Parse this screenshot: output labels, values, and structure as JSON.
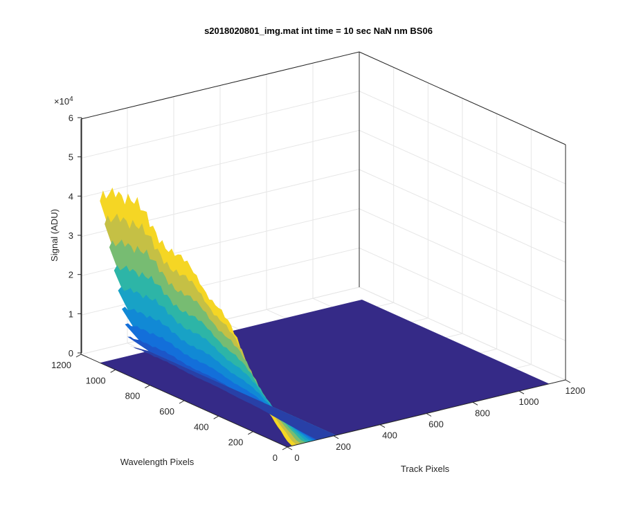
{
  "chart_data": {
    "type": "surface",
    "title": "s2018020801_img.mat int time = 10 sec  NaN nm BS06",
    "xlabel": "Track Pixels",
    "ylabel": "Wavelength Pixels",
    "zlabel": "Signal (ADU)",
    "z_exponent_label": "×10",
    "z_exponent": "4",
    "xlim": [
      0,
      1200
    ],
    "ylim": [
      0,
      1200
    ],
    "zlim": [
      0,
      60000
    ],
    "x_ticks": [
      "0",
      "200",
      "400",
      "600",
      "800",
      "1000",
      "1200"
    ],
    "y_ticks": [
      "0",
      "200",
      "400",
      "600",
      "800",
      "1000",
      "1200"
    ],
    "z_ticks": [
      "0",
      "1",
      "2",
      "3",
      "4",
      "5",
      "6"
    ],
    "grid": true,
    "colormap": "parula",
    "colors": {
      "low": "#352a87",
      "mid": "#1d9ece",
      "high": "#f9e915"
    },
    "signal_profile": {
      "track_extent": [
        0,
        150
      ],
      "wavelength_pixels": [
        0,
        100,
        200,
        300,
        400,
        500,
        600,
        700,
        800,
        900,
        1000,
        1100
      ],
      "peak_signal": [
        1500,
        6000,
        14000,
        22000,
        28000,
        32000,
        35000,
        38000,
        41000,
        45000,
        47000,
        40000
      ]
    }
  }
}
